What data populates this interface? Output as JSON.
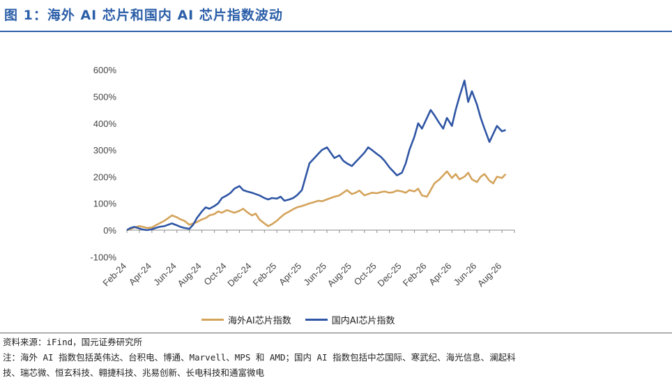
{
  "title": "图 1：海外 AI 芯片和国内 AI 芯片指数波动",
  "source": "资料来源：iFind，国元证券研究所",
  "note_line1": "注：海外 AI 指数包括英伟达、台积电、博通、Marvell、MPS 和 AMD；国内 AI 指数包括中芯国际、寒武纪、海光信息、澜起科",
  "note_line2": "技、瑞芯微、恒玄科技、翱捷科技、兆易创新、长电科技和通富微电",
  "chart_data": {
    "type": "line",
    "ylim": [
      -100,
      600
    ],
    "yticks": [
      "-100%",
      "0%",
      "100%",
      "200%",
      "300%",
      "400%",
      "500%",
      "600%"
    ],
    "ytick_values": [
      -100,
      0,
      100,
      200,
      300,
      400,
      500,
      600
    ],
    "xticks": [
      "Feb-24",
      "Apr-24",
      "Jun-24",
      "Aug-24",
      "Oct-24",
      "Dec-24",
      "Feb-25",
      "Apr-25",
      "Jun-25",
      "Aug-25",
      "Oct-25",
      "Dec-25",
      "Feb-26",
      "Apr-26",
      "Jun-26",
      "Aug-26"
    ],
    "x_month_count": 31,
    "legend_position": "bottom",
    "colors": {
      "overseas": "#d4a35a",
      "domestic": "#2f55a4"
    },
    "series": [
      {
        "name": "海外AI芯片指数",
        "color": "#d4a35a",
        "x": [
          0,
          0.3,
          0.6,
          1.0,
          1.3,
          1.6,
          2.0,
          2.3,
          2.6,
          3.0,
          3.3,
          3.6,
          4.0,
          4.3,
          4.6,
          5.0,
          5.3,
          5.6,
          6.0,
          6.3,
          6.6,
          7.0,
          7.3,
          7.6,
          8.0,
          8.3,
          8.6,
          9.0,
          9.3,
          9.6,
          10.0,
          10.3,
          10.6,
          11.0,
          11.3,
          11.6,
          12.0,
          12.3,
          12.6,
          13.0,
          13.3,
          13.6,
          14.0,
          14.3,
          14.6,
          15.0,
          15.3,
          15.6,
          16.0,
          16.3,
          16.6,
          17.0,
          17.3,
          17.6,
          18.0,
          18.3,
          18.6,
          19.0,
          19.3,
          19.6,
          20.0,
          20.3,
          20.6,
          21.0,
          21.3,
          21.6,
          22.0,
          22.3,
          22.6,
          23.0,
          23.3,
          23.6,
          24.0,
          24.3,
          24.6,
          25.0,
          25.3,
          25.6,
          26.0,
          26.3,
          26.6,
          27.0,
          27.3,
          27.6,
          28.0,
          28.3,
          28.6,
          29.0,
          29.3,
          29.6,
          30.0,
          30.3
        ],
        "values": [
          0,
          5,
          10,
          15,
          12,
          8,
          10,
          18,
          25,
          35,
          45,
          55,
          48,
          40,
          35,
          20,
          25,
          30,
          40,
          45,
          55,
          60,
          70,
          65,
          75,
          70,
          65,
          72,
          80,
          68,
          55,
          62,
          40,
          25,
          15,
          22,
          35,
          48,
          60,
          70,
          78,
          85,
          90,
          95,
          100,
          105,
          110,
          108,
          115,
          120,
          125,
          130,
          140,
          150,
          135,
          140,
          148,
          130,
          135,
          140,
          138,
          142,
          145,
          140,
          142,
          148,
          145,
          140,
          150,
          145,
          155,
          130,
          125,
          150,
          175,
          190,
          205,
          220,
          195,
          210,
          190,
          200,
          215,
          190,
          180,
          200,
          210,
          185,
          175,
          200,
          195,
          210
        ]
      },
      {
        "name": "国内AI芯片指数",
        "color": "#2f55a4",
        "x": [
          0,
          0.3,
          0.6,
          1.0,
          1.3,
          1.6,
          2.0,
          2.3,
          2.6,
          3.0,
          3.3,
          3.6,
          4.0,
          4.3,
          4.6,
          5.0,
          5.3,
          5.6,
          6.0,
          6.3,
          6.6,
          7.0,
          7.3,
          7.6,
          8.0,
          8.3,
          8.6,
          9.0,
          9.3,
          9.6,
          10.0,
          10.3,
          10.6,
          11.0,
          11.3,
          11.6,
          12.0,
          12.3,
          12.6,
          13.0,
          13.3,
          13.6,
          14.0,
          14.3,
          14.6,
          15.0,
          15.3,
          15.6,
          16.0,
          16.3,
          16.6,
          17.0,
          17.3,
          17.6,
          18.0,
          18.3,
          18.6,
          19.0,
          19.3,
          19.6,
          20.0,
          20.3,
          20.6,
          21.0,
          21.3,
          21.6,
          22.0,
          22.3,
          22.6,
          23.0,
          23.3,
          23.6,
          24.0,
          24.3,
          24.6,
          25.0,
          25.3,
          25.6,
          26.0,
          26.3,
          26.6,
          27.0,
          27.3,
          27.6,
          28.0,
          28.3,
          28.6,
          29.0,
          29.3,
          29.6,
          30.0,
          30.3
        ],
        "values": [
          0,
          8,
          12,
          6,
          2,
          0,
          3,
          8,
          12,
          15,
          20,
          25,
          18,
          12,
          8,
          5,
          20,
          45,
          70,
          85,
          80,
          90,
          100,
          120,
          130,
          140,
          155,
          165,
          150,
          145,
          140,
          135,
          130,
          120,
          115,
          120,
          118,
          125,
          110,
          115,
          120,
          130,
          150,
          200,
          250,
          270,
          285,
          300,
          310,
          290,
          270,
          280,
          260,
          250,
          240,
          255,
          270,
          290,
          310,
          300,
          285,
          275,
          260,
          235,
          220,
          205,
          215,
          250,
          300,
          350,
          400,
          380,
          420,
          450,
          430,
          400,
          380,
          420,
          390,
          450,
          500,
          560,
          480,
          520,
          470,
          420,
          380,
          330,
          360,
          390,
          370,
          375
        ]
      }
    ]
  }
}
